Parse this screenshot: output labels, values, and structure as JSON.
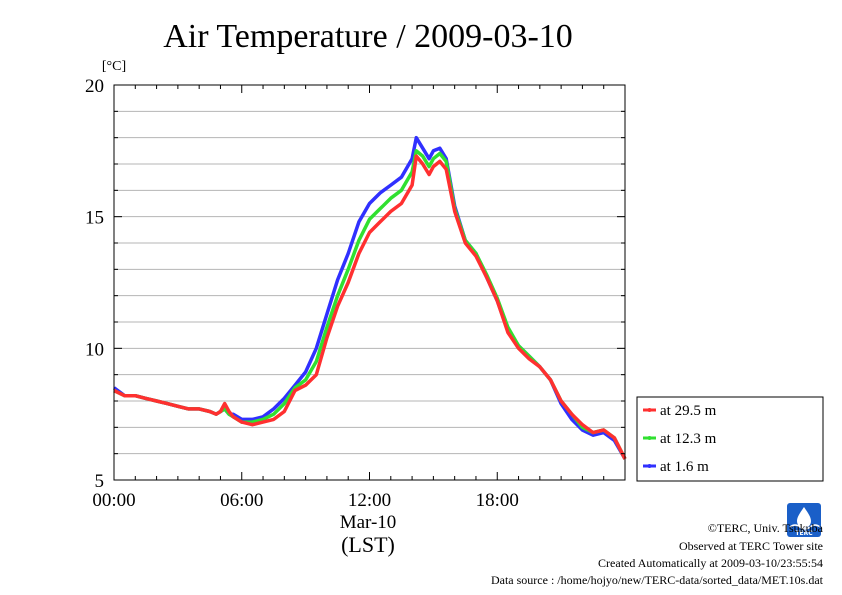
{
  "chart_data": {
    "type": "line",
    "title": "Air Temperature / 2009-03-10",
    "ylabel": "[°C]",
    "xlabel_date": "Mar-10",
    "xlabel_tz": "(LST)",
    "xlim": [
      0,
      24
    ],
    "ylim": [
      5,
      20
    ],
    "x_ticks": [
      {
        "value": 0,
        "label": "00:00"
      },
      {
        "value": 6,
        "label": "06:00"
      },
      {
        "value": 12,
        "label": "12:00"
      },
      {
        "value": 18,
        "label": "18:00"
      }
    ],
    "y_ticks": [
      {
        "value": 5,
        "label": "5"
      },
      {
        "value": 10,
        "label": "10"
      },
      {
        "value": 15,
        "label": "15"
      },
      {
        "value": 20,
        "label": "20"
      }
    ],
    "grid": true,
    "legend_position": "right",
    "series": [
      {
        "name": "at 29.5 m",
        "color": "#ff3030",
        "x": [
          0,
          0.5,
          1,
          1.5,
          2,
          2.5,
          3,
          3.5,
          4,
          4.5,
          4.8,
          5,
          5.2,
          5.4,
          5.6,
          6,
          6.5,
          7,
          7.5,
          8,
          8.5,
          9,
          9.5,
          10,
          10.5,
          11,
          11.5,
          12,
          12.5,
          13,
          13.5,
          14,
          14.2,
          14.5,
          14.8,
          15,
          15.3,
          15.6,
          16,
          16.5,
          17,
          17.5,
          18,
          18.5,
          19,
          19.5,
          20,
          20.5,
          21,
          21.5,
          22,
          22.5,
          23,
          23.5,
          24
        ],
        "values": [
          8.4,
          8.2,
          8.2,
          8.1,
          8.0,
          7.9,
          7.8,
          7.7,
          7.7,
          7.6,
          7.5,
          7.6,
          7.9,
          7.6,
          7.4,
          7.2,
          7.1,
          7.2,
          7.3,
          7.6,
          8.4,
          8.6,
          9.0,
          10.4,
          11.6,
          12.5,
          13.6,
          14.4,
          14.8,
          15.2,
          15.5,
          16.2,
          17.3,
          17.0,
          16.6,
          16.9,
          17.1,
          16.8,
          15.2,
          14.0,
          13.5,
          12.7,
          11.8,
          10.6,
          10.0,
          9.6,
          9.3,
          8.8,
          8.0,
          7.5,
          7.1,
          6.8,
          6.9,
          6.6,
          5.8
        ]
      },
      {
        "name": "at 12.3 m",
        "color": "#30e030",
        "x": [
          0,
          0.5,
          1,
          1.5,
          2,
          2.5,
          3,
          3.5,
          4,
          4.5,
          4.8,
          5,
          5.2,
          5.4,
          5.6,
          6,
          6.5,
          7,
          7.5,
          8,
          8.5,
          9,
          9.5,
          10,
          10.5,
          11,
          11.5,
          12,
          12.5,
          13,
          13.5,
          14,
          14.2,
          14.5,
          14.8,
          15,
          15.3,
          15.6,
          16,
          16.5,
          17,
          17.5,
          18,
          18.5,
          19,
          19.5,
          20,
          20.5,
          21,
          21.5,
          22,
          22.5,
          23,
          23.5,
          24
        ],
        "values": [
          8.4,
          8.2,
          8.2,
          8.1,
          8.0,
          7.9,
          7.8,
          7.7,
          7.7,
          7.6,
          7.5,
          7.6,
          7.7,
          7.5,
          7.4,
          7.2,
          7.2,
          7.3,
          7.5,
          7.9,
          8.5,
          8.8,
          9.5,
          10.8,
          12.0,
          13.0,
          14.1,
          14.9,
          15.3,
          15.7,
          16.0,
          16.7,
          17.5,
          17.3,
          16.9,
          17.2,
          17.4,
          17.1,
          15.3,
          14.1,
          13.6,
          12.8,
          11.9,
          10.8,
          10.1,
          9.7,
          9.3,
          8.8,
          8.0,
          7.5,
          7.0,
          6.8,
          6.9,
          6.6,
          5.8
        ]
      },
      {
        "name": "at 1.6 m",
        "color": "#3030ff",
        "x": [
          0,
          0.5,
          1,
          1.5,
          2,
          2.5,
          3,
          3.5,
          4,
          4.5,
          4.8,
          5,
          5.2,
          5.4,
          5.6,
          6,
          6.5,
          7,
          7.5,
          8,
          8.5,
          9,
          9.5,
          10,
          10.5,
          11,
          11.5,
          12,
          12.5,
          13,
          13.5,
          14,
          14.2,
          14.5,
          14.8,
          15,
          15.3,
          15.6,
          16,
          16.5,
          17,
          17.5,
          18,
          18.5,
          19,
          19.5,
          20,
          20.5,
          21,
          21.5,
          22,
          22.5,
          23,
          23.5,
          24
        ],
        "values": [
          8.5,
          8.2,
          8.2,
          8.1,
          8.0,
          7.9,
          7.8,
          7.7,
          7.7,
          7.6,
          7.5,
          7.6,
          7.7,
          7.5,
          7.5,
          7.3,
          7.3,
          7.4,
          7.7,
          8.1,
          8.6,
          9.1,
          10.0,
          11.3,
          12.6,
          13.6,
          14.8,
          15.5,
          15.9,
          16.2,
          16.5,
          17.2,
          18.0,
          17.6,
          17.2,
          17.5,
          17.6,
          17.2,
          15.4,
          14.1,
          13.6,
          12.7,
          11.8,
          10.7,
          10.1,
          9.7,
          9.3,
          8.8,
          7.9,
          7.3,
          6.9,
          6.7,
          6.8,
          6.5,
          5.8
        ]
      }
    ]
  },
  "footer": {
    "copyright": "©TERC, Univ. Tsukuba",
    "observed": "Observed at TERC Tower site",
    "created": "Created Automatically at 2009-03-10/23:55:54",
    "source": "Data source : /home/hojyo/new/TERC-data/sorted_data/MET.10s.dat"
  },
  "logo": {
    "text": "TERC",
    "color": "#1a5fc8"
  }
}
